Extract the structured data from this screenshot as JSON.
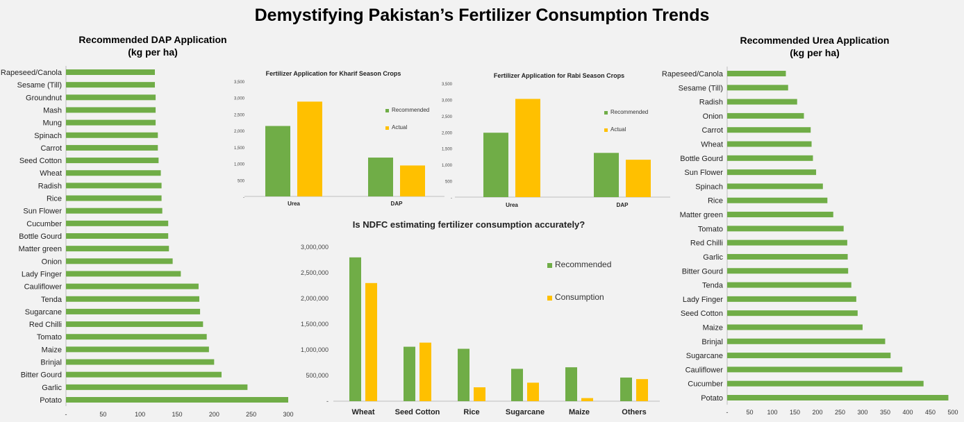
{
  "title": "Demystifying Pakistan’s Fertilizer Consumption Trends",
  "colors": {
    "green": "#70ad47",
    "yellow": "#ffc000",
    "axis": "#bfbfbf"
  },
  "chart_data": [
    {
      "id": "dap",
      "type": "bar",
      "orientation": "horizontal",
      "title": "Recommended DAP Application",
      "subtitle": "(kg per ha)",
      "categories": [
        "Rapeseed/Canola",
        "Sesame (Till)",
        "Groundnut",
        "Mash",
        "Mung",
        "Spinach",
        "Carrot",
        "Seed Cotton",
        "Wheat",
        "Radish",
        "Rice",
        "Sun Flower",
        "Cucumber",
        "Bottle Gourd",
        "Matter green",
        "Onion",
        "Lady Finger",
        "Cauliflower",
        "Tenda",
        "Sugarcane",
        "Red Chilli",
        "Tomato",
        "Maize",
        "Brinjal",
        "Bitter Gourd",
        "Garlic",
        "Potato"
      ],
      "values": [
        120,
        120,
        121,
        121,
        121,
        124,
        124,
        125,
        128,
        129,
        129,
        130,
        138,
        138,
        139,
        144,
        155,
        179,
        180,
        181,
        185,
        190,
        193,
        200,
        210,
        245,
        300
      ],
      "xlim": [
        0,
        300
      ],
      "ticks": [
        "-",
        "50",
        "100",
        "150",
        "200",
        "250",
        "300"
      ],
      "tick_values": [
        0,
        50,
        100,
        150,
        200,
        250,
        300
      ]
    },
    {
      "id": "kharif",
      "type": "bar",
      "title": "Fertilizer Application for Kharif Season Crops",
      "categories": [
        "Urea",
        "DAP"
      ],
      "series": [
        {
          "name": "Recommended",
          "values": [
            2140,
            1180
          ]
        },
        {
          "name": "Actual",
          "values": [
            2880,
            940
          ]
        }
      ],
      "ylim": [
        0,
        3500
      ],
      "ticks": [
        "-",
        "500",
        "1,000",
        "1,500",
        "2,000",
        "2,500",
        "3,000",
        "3,500"
      ],
      "tick_values": [
        0,
        500,
        1000,
        1500,
        2000,
        2500,
        3000,
        3500
      ]
    },
    {
      "id": "rabi",
      "type": "bar",
      "title": "Fertilizer Application for Rabi Season Crops",
      "categories": [
        "Urea",
        "DAP"
      ],
      "series": [
        {
          "name": "Recommended",
          "values": [
            1980,
            1360
          ]
        },
        {
          "name": "Actual",
          "values": [
            3020,
            1150
          ]
        }
      ],
      "ylim": [
        0,
        3500
      ],
      "ticks": [
        "-",
        "500",
        "1,000",
        "1,500",
        "2,000",
        "2,500",
        "3,000",
        "3,500"
      ],
      "tick_values": [
        0,
        500,
        1000,
        1500,
        2000,
        2500,
        3000,
        3500
      ]
    },
    {
      "id": "ndfc",
      "type": "bar",
      "title": "Is NDFC estimating fertilizer consumption accurately?",
      "categories": [
        "Wheat",
        "Seed Cotton",
        "Rice",
        "Sugarcane",
        "Maize",
        "Others"
      ],
      "series": [
        {
          "name": "Recommended",
          "values": [
            2800000,
            1060000,
            1020000,
            630000,
            660000,
            460000
          ]
        },
        {
          "name": "Consumption",
          "values": [
            2300000,
            1140000,
            270000,
            360000,
            60000,
            430000
          ]
        }
      ],
      "ylim": [
        0,
        3000000
      ],
      "ticks": [
        "-",
        "500,000",
        "1,000,000",
        "1,500,000",
        "2,000,000",
        "2,500,000",
        "3,000,000"
      ],
      "tick_values": [
        0,
        500000,
        1000000,
        1500000,
        2000000,
        2500000,
        3000000
      ]
    },
    {
      "id": "urea",
      "type": "bar",
      "orientation": "horizontal",
      "title": "Recommended Urea Application",
      "subtitle": "(kg per ha)",
      "categories": [
        "Rapeseed/Canola",
        "Sesame (Till)",
        "Radish",
        "Onion",
        "Carrot",
        "Wheat",
        "Bottle Gourd",
        "Sun Flower",
        "Spinach",
        "Rice",
        "Matter green",
        "Tomato",
        "Red Chilli",
        "Garlic",
        "Bitter Gourd",
        "Tenda",
        "Lady Finger",
        "Seed Cotton",
        "Maize",
        "Brinjal",
        "Sugarcane",
        "Cauliflower",
        "Cucumber",
        "Potato"
      ],
      "values": [
        130,
        135,
        155,
        170,
        185,
        187,
        190,
        197,
        212,
        222,
        235,
        258,
        266,
        267,
        268,
        275,
        286,
        289,
        300,
        350,
        362,
        388,
        435,
        490
      ],
      "xlim": [
        0,
        500
      ],
      "ticks": [
        "-",
        "50",
        "100",
        "150",
        "200",
        "250",
        "300",
        "350",
        "400",
        "450",
        "500"
      ],
      "tick_values": [
        0,
        50,
        100,
        150,
        200,
        250,
        300,
        350,
        400,
        450,
        500
      ]
    }
  ]
}
